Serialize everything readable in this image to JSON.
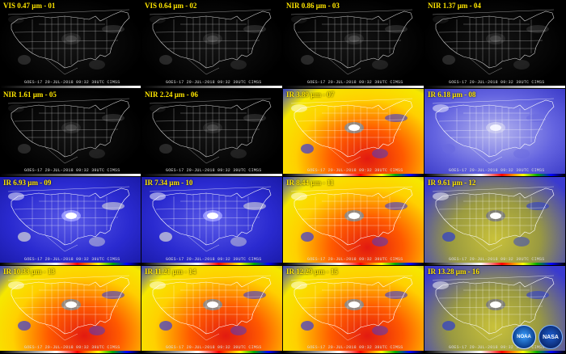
{
  "panels": [
    {
      "label": "VIS 0.47 µm - 01",
      "style": "vis"
    },
    {
      "label": "VIS 0.64 µm - 02",
      "style": "vis"
    },
    {
      "label": "NIR 0.86 µm - 03",
      "style": "vis"
    },
    {
      "label": "NIR 1.37 µm - 04",
      "style": "vis"
    },
    {
      "label": "NIR 1.61 µm - 05",
      "style": "vis"
    },
    {
      "label": "NIR 2.24 µm - 06",
      "style": "vis"
    },
    {
      "label": "IR 3.89 µm - 07",
      "style": "ir_warm"
    },
    {
      "label": "IR 6.18 µm - 08",
      "style": "wv_light"
    },
    {
      "label": "IR 6.93 µm - 09",
      "style": "wv_blue"
    },
    {
      "label": "IR 7.34 µm - 10",
      "style": "wv_blue"
    },
    {
      "label": "IR 8.44 µm - 11",
      "style": "ir_warm"
    },
    {
      "label": "IR 9.61 µm - 12",
      "style": "ir_olive"
    },
    {
      "label": "IR 10.33 µm - 13",
      "style": "ir_warm"
    },
    {
      "label": "IR 11.21 µm - 14",
      "style": "ir_warm"
    },
    {
      "label": "IR 12.29 µm - 15",
      "style": "ir_warm"
    },
    {
      "label": "IR 13.28 µm - 16",
      "style": "ir_olive"
    }
  ],
  "timestamp": "GOES-17 29-JUL-2018 09:32 39UTC  CIMSS",
  "logos": {
    "noaa": "NOAA",
    "nasa": "NASA"
  },
  "colors": {
    "label": "#ffe600",
    "map_lines": "#ffffff"
  }
}
